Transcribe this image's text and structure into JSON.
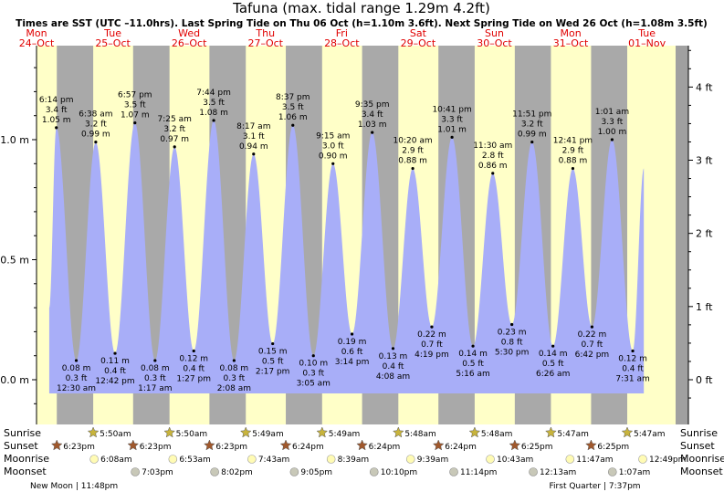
{
  "header": {
    "title": "Tafuna (max. tidal range 1.29m 4.2ft)",
    "subtitle": "Times are SST (UTC –11.0hrs). Last Spring Tide on Thu 06 Oct (h=1.10m 3.6ft). Next Spring Tide on Wed 26 Oct (h=1.08m 3.5ft)"
  },
  "days": [
    {
      "dow": "Mon",
      "date": "24–Oct"
    },
    {
      "dow": "Tue",
      "date": "25–Oct"
    },
    {
      "dow": "Wed",
      "date": "26–Oct"
    },
    {
      "dow": "Thu",
      "date": "27–Oct"
    },
    {
      "dow": "Fri",
      "date": "28–Oct"
    },
    {
      "dow": "Sat",
      "date": "29–Oct"
    },
    {
      "dow": "Sun",
      "date": "30–Oct"
    },
    {
      "dow": "Mon",
      "date": "31–Oct"
    },
    {
      "dow": "Tue",
      "date": "01–Nov"
    }
  ],
  "row_labels": [
    "Sunrise",
    "Sunset",
    "Moonrise",
    "Moonset"
  ],
  "colors": {
    "day": "#ffffc8",
    "night": "#a9a9a9",
    "tide_fill": "#a8aef8",
    "date_red": "#e00000",
    "sun_star": "#c8b43c",
    "sunset_star": "#a0582c",
    "moonrise": "#fffbb4",
    "moonset": "#c8c8b8"
  },
  "chart_data": {
    "type": "area",
    "y_left_label_unit": "m",
    "y_left_ticks": [
      "0.0 m",
      "0.5 m",
      "1.0 m"
    ],
    "y_right_ticks": [
      "0 ft",
      "1 ft",
      "2 ft",
      "3 ft",
      "4 ft"
    ],
    "ylim_m": [
      -0.12,
      1.45
    ],
    "x_start_hour": 12.0,
    "x_end_hour": 213.0,
    "tides": [
      {
        "t": 18.23,
        "type": "high",
        "time": "6:14 pm",
        "ft": "3.4 ft",
        "m": 1.05
      },
      {
        "t": 24.5,
        "type": "low",
        "time": "12:30 am",
        "ft": "0.3 ft",
        "m": 0.08
      },
      {
        "t": 30.63,
        "type": "high",
        "time": "6:38 am",
        "ft": "3.2 ft",
        "m": 0.99
      },
      {
        "t": 36.7,
        "type": "low",
        "time": "12:42 pm",
        "ft": "0.4 ft",
        "m": 0.11
      },
      {
        "t": 42.95,
        "type": "high",
        "time": "6:57 pm",
        "ft": "3.5 ft",
        "m": 1.07
      },
      {
        "t": 49.28,
        "type": "low",
        "time": "1:17 am",
        "ft": "0.3 ft",
        "m": 0.08
      },
      {
        "t": 55.42,
        "type": "high",
        "time": "7:25 am",
        "ft": "3.2 ft",
        "m": 0.97
      },
      {
        "t": 61.45,
        "type": "low",
        "time": "1:27 pm",
        "ft": "0.4 ft",
        "m": 0.12
      },
      {
        "t": 67.73,
        "type": "high",
        "time": "7:44 pm",
        "ft": "3.5 ft",
        "m": 1.08
      },
      {
        "t": 74.13,
        "type": "low",
        "time": "2:08 am",
        "ft": "0.3 ft",
        "m": 0.08
      },
      {
        "t": 80.28,
        "type": "high",
        "time": "8:17 am",
        "ft": "3.1 ft",
        "m": 0.94
      },
      {
        "t": 86.28,
        "type": "low",
        "time": "2:17 pm",
        "ft": "0.5 ft",
        "m": 0.15
      },
      {
        "t": 92.62,
        "type": "high",
        "time": "8:37 pm",
        "ft": "3.5 ft",
        "m": 1.06
      },
      {
        "t": 99.08,
        "type": "low",
        "time": "3:05 am",
        "ft": "0.3 ft",
        "m": 0.1
      },
      {
        "t": 105.25,
        "type": "high",
        "time": "9:15 am",
        "ft": "3.0 ft",
        "m": 0.9
      },
      {
        "t": 111.23,
        "type": "low",
        "time": "3:14 pm",
        "ft": "0.6 ft",
        "m": 0.19
      },
      {
        "t": 117.58,
        "type": "high",
        "time": "9:35 pm",
        "ft": "3.4 ft",
        "m": 1.03
      },
      {
        "t": 124.13,
        "type": "low",
        "time": "4:08 am",
        "ft": "0.4 ft",
        "m": 0.13
      },
      {
        "t": 130.33,
        "type": "high",
        "time": "10:20 am",
        "ft": "2.9 ft",
        "m": 0.88
      },
      {
        "t": 136.32,
        "type": "low",
        "time": "4:19 pm",
        "ft": "0.7 ft",
        "m": 0.22
      },
      {
        "t": 142.68,
        "type": "high",
        "time": "10:41 pm",
        "ft": "3.3 ft",
        "m": 1.01
      },
      {
        "t": 149.27,
        "type": "low",
        "time": "5:16 am",
        "ft": "0.5 ft",
        "m": 0.14
      },
      {
        "t": 155.5,
        "type": "high",
        "time": "11:30 am",
        "ft": "2.8 ft",
        "m": 0.86
      },
      {
        "t": 161.5,
        "type": "low",
        "time": "5:30 pm",
        "ft": "0.8 ft",
        "m": 0.23
      },
      {
        "t": 167.85,
        "type": "high",
        "time": "11:51 pm",
        "ft": "3.2 ft",
        "m": 0.99
      },
      {
        "t": 174.43,
        "type": "low",
        "time": "6:26 am",
        "ft": "0.5 ft",
        "m": 0.14
      },
      {
        "t": 180.68,
        "type": "high",
        "time": "12:41 pm",
        "ft": "2.9 ft",
        "m": 0.88
      },
      {
        "t": 186.7,
        "type": "low",
        "time": "6:42 pm",
        "ft": "0.7 ft",
        "m": 0.22
      },
      {
        "t": 193.02,
        "type": "high",
        "time": "1:01 am",
        "ft": "3.3 ft",
        "m": 1.0
      },
      {
        "t": 199.52,
        "type": "low",
        "time": "7:31 am",
        "ft": "0.4 ft",
        "m": 0.12
      }
    ],
    "curve_end": {
      "t": 203.0,
      "m": 0.88
    },
    "sunrise": [
      "5:50am",
      "5:50am",
      "5:49am",
      "5:49am",
      "5:48am",
      "5:48am",
      "5:47am",
      "5:47am"
    ],
    "sunrise_t": [
      29.83,
      53.83,
      77.82,
      101.82,
      125.8,
      149.8,
      173.78,
      197.78
    ],
    "sunset": [
      "6:23pm",
      "6:23pm",
      "6:23pm",
      "6:24pm",
      "6:24pm",
      "6:24pm",
      "6:25pm",
      "6:25pm"
    ],
    "sunset_t": [
      18.38,
      42.38,
      66.38,
      90.4,
      114.4,
      138.4,
      162.42,
      186.42
    ],
    "moonrise": [
      "6:08am",
      "6:53am",
      "7:43am",
      "8:39am",
      "9:39am",
      "10:43am",
      "11:47am",
      "12:49pm"
    ],
    "moonrise_t": [
      30.13,
      54.88,
      79.72,
      104.65,
      129.65,
      154.72,
      179.78,
      204.82
    ],
    "moonset": [
      "7:03pm",
      "8:02pm",
      "9:05pm",
      "10:10pm",
      "11:14pm",
      "12:13am",
      "1:07am"
    ],
    "moonset_t": [
      43.05,
      68.03,
      93.08,
      118.17,
      143.23,
      168.22,
      193.12
    ],
    "moon_phases": [
      {
        "label": "New Moon | 11:48pm",
        "t": 23.8
      },
      {
        "label": "First Quarter | 7:37pm",
        "t": 187.6
      }
    ]
  }
}
